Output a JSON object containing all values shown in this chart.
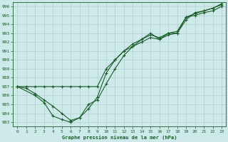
{
  "background_color": "#cde9e9",
  "grid_color": "#b0d0cc",
  "line_color": "#1a5c2a",
  "xlabel": "Graphe pression niveau de la mer (hPa)",
  "xlim": [
    -0.5,
    23.5
  ],
  "ylim": [
    982.5,
    996.5
  ],
  "yticks": [
    983,
    984,
    985,
    986,
    987,
    988,
    989,
    990,
    991,
    992,
    993,
    994,
    995,
    996
  ],
  "xticks": [
    0,
    1,
    2,
    3,
    4,
    5,
    6,
    7,
    8,
    9,
    10,
    11,
    12,
    13,
    14,
    15,
    16,
    17,
    18,
    19,
    20,
    21,
    22,
    23
  ],
  "series1": {
    "x": [
      0,
      1,
      2,
      3,
      4,
      5,
      6,
      7,
      8,
      9,
      10,
      11,
      12,
      13,
      14,
      15,
      16,
      17,
      18,
      19,
      20,
      21,
      22,
      23
    ],
    "y": [
      987,
      987,
      987,
      987,
      987,
      987,
      987,
      987,
      987,
      987,
      989,
      990,
      991,
      991.5,
      992,
      992.5,
      992.3,
      993.0,
      993.0,
      994.8,
      995.0,
      995.3,
      995.5,
      996.0
    ]
  },
  "series2": {
    "x": [
      0,
      1,
      2,
      3,
      4,
      5,
      6,
      7,
      8,
      9,
      10,
      11,
      12,
      13,
      14,
      15,
      16,
      17,
      18,
      19,
      20,
      21,
      22,
      23
    ],
    "y": [
      987,
      986.8,
      986.2,
      985.5,
      984.8,
      984.0,
      983.2,
      983.5,
      984.5,
      985.8,
      988.5,
      990.0,
      991.0,
      991.8,
      992.3,
      992.8,
      992.5,
      993.0,
      993.2,
      994.8,
      995.2,
      995.5,
      995.8,
      996.2
    ]
  },
  "series3": {
    "x": [
      0,
      2,
      3,
      4,
      5,
      6,
      7,
      8,
      9,
      10,
      11,
      12,
      13,
      14,
      15,
      16,
      17,
      18,
      19,
      20,
      21,
      22,
      23
    ],
    "y": [
      987,
      986.0,
      985.2,
      983.7,
      983.3,
      983.0,
      983.5,
      985.0,
      985.5,
      987.3,
      989.0,
      990.5,
      991.5,
      992.3,
      993.0,
      992.3,
      992.8,
      993.0,
      994.5,
      995.3,
      995.5,
      995.8,
      996.3
    ]
  }
}
